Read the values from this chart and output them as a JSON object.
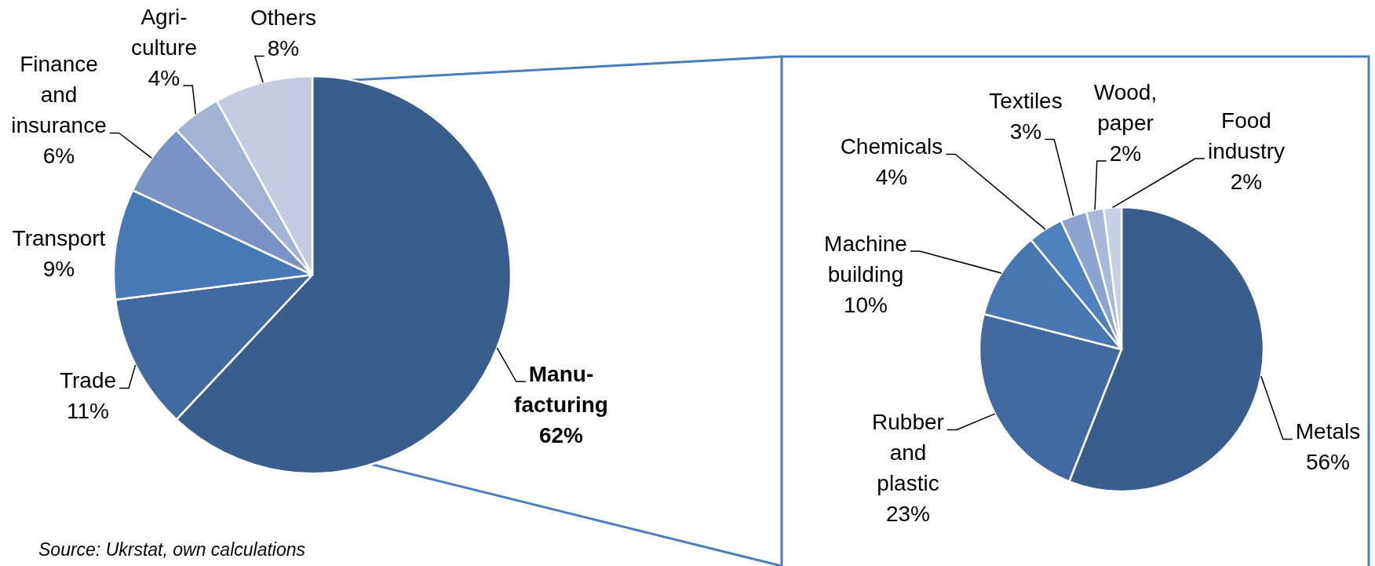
{
  "chart_data": [
    {
      "type": "pie",
      "categories": [
        "Manu-facturing",
        "Trade",
        "Transport",
        "Finance and insurance",
        "Agri-culture",
        "Others"
      ],
      "values": [
        62,
        11,
        9,
        6,
        4,
        8
      ],
      "colors": [
        "#3a5e8b",
        "#416b9f",
        "#4879b4",
        "#7994c4",
        "#a3b3d5",
        "#c3cce2"
      ],
      "value_labels": [
        "62%",
        "11%",
        "9%",
        "6%",
        "4%",
        "8%"
      ],
      "annotations": [
        "Source: Ukrstat, own calculations"
      ]
    },
    {
      "type": "pie",
      "categories": [
        "Metals",
        "Rubber and plastic",
        "Machine building",
        "Chemicals",
        "Textiles",
        "Wood, paper",
        "Food industry"
      ],
      "values": [
        56,
        23,
        10,
        4,
        3,
        2,
        2
      ],
      "colors": [
        "#3a5e8b",
        "#416b9f",
        "#4876b0",
        "#4f81bd",
        "#8aa3cf",
        "#a9b9db",
        "#c5d0e5"
      ],
      "value_labels": [
        "56%",
        "23%",
        "10%",
        "4%",
        "3%",
        "2%",
        "2%"
      ]
    }
  ]
}
